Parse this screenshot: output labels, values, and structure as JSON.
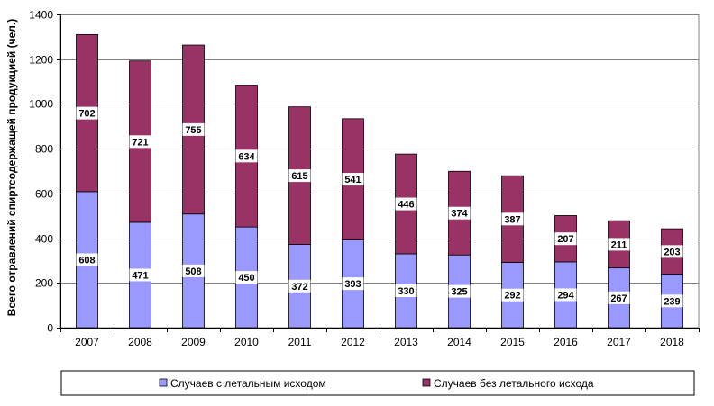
{
  "chart_data": {
    "type": "bar",
    "stacked": true,
    "title": "",
    "xlabel": "",
    "ylabel": "Всего отравлений спиртсодержащей продукцией (чел.)",
    "ylim": [
      0,
      1400
    ],
    "yticks": [
      0,
      200,
      400,
      600,
      800,
      1000,
      1200,
      1400
    ],
    "grid": true,
    "legend_position": "bottom",
    "categories": [
      "2007",
      "2008",
      "2009",
      "2010",
      "2011",
      "2012",
      "2013",
      "2014",
      "2015",
      "2016",
      "2017",
      "2018"
    ],
    "series": [
      {
        "name": "Случаев с летальным исходом",
        "color": "#9999ff",
        "values": [
          608,
          471,
          508,
          450,
          372,
          393,
          330,
          325,
          292,
          294,
          267,
          239
        ]
      },
      {
        "name": "Случаев без летального исхода",
        "color": "#993366",
        "values": [
          702,
          721,
          755,
          634,
          615,
          541,
          446,
          374,
          387,
          207,
          211,
          203
        ]
      }
    ]
  }
}
